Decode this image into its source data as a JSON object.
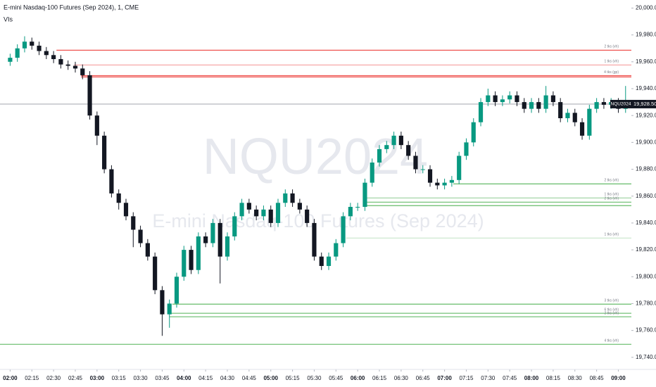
{
  "chart_data": {
    "type": "candlestick",
    "title": "E-mini Nasdaq-100 Futures (Sep 2024), 1, CME",
    "subtitle": "VIs",
    "watermark": "NQU2024",
    "watermark_subtitle": "E-mini Nasdaq-100 Futures (Sep 2024)",
    "up_color": "#089981",
    "down_color": "#131722",
    "xlim": [
      "01:53",
      "09:09"
    ],
    "xticks": [
      "02:00",
      "02:15",
      "02:30",
      "02:45",
      "03:00",
      "03:15",
      "03:30",
      "03:45",
      "04:00",
      "04:15",
      "04:30",
      "04:45",
      "05:00",
      "05:15",
      "05:30",
      "05:45",
      "06:00",
      "06:15",
      "06:30",
      "06:45",
      "07:00",
      "07:15",
      "07:30",
      "07:45",
      "08:00",
      "08:15",
      "08:30",
      "08:45",
      "09:00"
    ],
    "ylim": [
      19731,
      20006
    ],
    "yticks": [
      {
        "value": 20000,
        "label": "20,000.00"
      },
      {
        "value": 19980,
        "label": "19,980.00"
      },
      {
        "value": 19960,
        "label": "19,960.00"
      },
      {
        "value": 19940,
        "label": "19,940.00"
      },
      {
        "value": 19920,
        "label": "19,920.00"
      },
      {
        "value": 19900,
        "label": "19,900.00"
      },
      {
        "value": 19880,
        "label": "19,880.00"
      },
      {
        "value": 19860,
        "label": "19,860.00"
      },
      {
        "value": 19840,
        "label": "19,840.00"
      },
      {
        "value": 19820,
        "label": "19,820.00"
      },
      {
        "value": 19800,
        "label": "19,800.00"
      },
      {
        "value": 19780,
        "label": "19,780.00"
      },
      {
        "value": 19760,
        "label": "19,760.00"
      },
      {
        "value": 19740,
        "label": "19,740.00"
      }
    ],
    "x": [
      "02:00",
      "02:05",
      "02:10",
      "02:15",
      "02:20",
      "02:25",
      "02:30",
      "02:35",
      "02:40",
      "02:45",
      "02:50",
      "02:55",
      "03:00",
      "03:05",
      "03:10",
      "03:15",
      "03:20",
      "03:25",
      "03:30",
      "03:35",
      "03:40",
      "03:45",
      "03:50",
      "03:55",
      "04:00",
      "04:05",
      "04:10",
      "04:15",
      "04:20",
      "04:25",
      "04:30",
      "04:35",
      "04:40",
      "04:45",
      "04:50",
      "04:55",
      "05:00",
      "05:05",
      "05:10",
      "05:15",
      "05:20",
      "05:25",
      "05:30",
      "05:35",
      "05:40",
      "05:45",
      "05:50",
      "05:55",
      "06:00",
      "06:05",
      "06:10",
      "06:15",
      "06:20",
      "06:25",
      "06:30",
      "06:35",
      "06:40",
      "06:45",
      "06:50",
      "06:55",
      "07:00",
      "07:05",
      "07:10",
      "07:15",
      "07:20",
      "07:25",
      "07:30",
      "07:35",
      "07:40",
      "07:45",
      "07:50",
      "07:55",
      "08:00",
      "08:05",
      "08:10",
      "08:15",
      "08:20",
      "08:25",
      "08:30",
      "08:35",
      "08:40",
      "08:45",
      "08:50",
      "08:55",
      "09:00",
      "09:05"
    ],
    "open": [
      19960,
      19963,
      19970,
      19975,
      19972,
      19968,
      19965,
      19962,
      19958,
      19957,
      19955,
      19950,
      19920,
      19905,
      19880,
      19862,
      19855,
      19845,
      19835,
      19825,
      19815,
      19790,
      19772,
      19780,
      19800,
      19820,
      19805,
      19830,
      19825,
      19840,
      19815,
      19830,
      19845,
      19855,
      19850,
      19845,
      19850,
      19840,
      19855,
      19862,
      19855,
      19850,
      19840,
      19815,
      19808,
      19815,
      19825,
      19845,
      19852,
      19852,
      19870,
      19885,
      19895,
      19898,
      19905,
      19898,
      19890,
      19880,
      19880,
      19870,
      19868,
      19870,
      19872,
      19890,
      19900,
      19915,
      19930,
      19935,
      19930,
      19932,
      19935,
      19930,
      19925,
      19930,
      19925,
      19935,
      19930,
      19918,
      19922,
      19915,
      19905,
      19925,
      19930,
      19928,
      19930,
      19925
    ],
    "high": [
      19966,
      19973,
      19979,
      19978,
      19975,
      19971,
      19968,
      19965,
      19961,
      19960,
      19958,
      19953,
      19923,
      19908,
      19883,
      19865,
      19858,
      19848,
      19838,
      19828,
      19818,
      19793,
      19783,
      19803,
      19823,
      19823,
      19833,
      19833,
      19843,
      19843,
      19833,
      19848,
      19858,
      19858,
      19853,
      19853,
      19853,
      19858,
      19865,
      19865,
      19858,
      19853,
      19843,
      19818,
      19818,
      19828,
      19848,
      19855,
      19855,
      19873,
      19888,
      19898,
      19901,
      19908,
      19908,
      19901,
      19893,
      19883,
      19883,
      19873,
      19873,
      19875,
      19893,
      19903,
      19918,
      19933,
      19940,
      19938,
      19935,
      19938,
      19938,
      19933,
      19933,
      19933,
      19942,
      19938,
      19933,
      19925,
      19925,
      19918,
      19928,
      19933,
      19933,
      19933,
      19933,
      19942
    ],
    "low": [
      19957,
      19960,
      19967,
      19969,
      19965,
      19962,
      19959,
      19955,
      19954,
      19952,
      19947,
      19917,
      19898,
      19877,
      19859,
      19850,
      19842,
      19822,
      19822,
      19812,
      19787,
      19756,
      19762,
      19777,
      19797,
      19802,
      19802,
      19822,
      19822,
      19795,
      19812,
      19827,
      19842,
      19847,
      19842,
      19842,
      19837,
      19837,
      19852,
      19852,
      19847,
      19837,
      19812,
      19805,
      19805,
      19812,
      19822,
      19842,
      19849,
      19849,
      19867,
      19882,
      19892,
      19895,
      19895,
      19887,
      19877,
      19877,
      19867,
      19865,
      19865,
      19867,
      19869,
      19887,
      19897,
      19912,
      19927,
      19927,
      19927,
      19929,
      19927,
      19922,
      19922,
      19922,
      19922,
      19927,
      19915,
      19915,
      19912,
      19902,
      19902,
      19922,
      19925,
      19925,
      19922,
      19922
    ],
    "close": [
      19963,
      19970,
      19975,
      19972,
      19968,
      19965,
      19962,
      19958,
      19957,
      19955,
      19950,
      19920,
      19905,
      19880,
      19862,
      19855,
      19845,
      19835,
      19825,
      19815,
      19790,
      19772,
      19780,
      19800,
      19820,
      19805,
      19830,
      19825,
      19840,
      19815,
      19830,
      19845,
      19855,
      19850,
      19845,
      19850,
      19840,
      19855,
      19862,
      19855,
      19850,
      19840,
      19815,
      19808,
      19815,
      19825,
      19845,
      19852,
      19852,
      19870,
      19885,
      19895,
      19898,
      19905,
      19898,
      19890,
      19880,
      19880,
      19870,
      19868,
      19870,
      19872,
      19890,
      19900,
      19915,
      19930,
      19935,
      19930,
      19932,
      19935,
      19930,
      19925,
      19930,
      19925,
      19935,
      19930,
      19918,
      19922,
      19915,
      19905,
      19925,
      19930,
      19928,
      19930,
      19925,
      19928.5
    ],
    "levels": [
      {
        "price": 19968.6,
        "start": "02:32",
        "color": "#ef5350",
        "label": "2 tks (vh)"
      },
      {
        "price": 19957.6,
        "start": "02:44",
        "color": "#f7a8a7",
        "label": "1 tks (vh)"
      },
      {
        "price": 19949.7,
        "start": "02:49",
        "color": "#ef5350",
        "label": "4 tks (gp)"
      },
      {
        "price": 19948.7,
        "start": "02:49",
        "color": "#ef5350"
      },
      {
        "price": 19869.1,
        "start": "07:06",
        "color": "#66bb6a",
        "label": "2 tks (vh)"
      },
      {
        "price": 19858.6,
        "start": "06:04",
        "color": "#a5d6a7",
        "label": "1 tks (vh)"
      },
      {
        "price": 19855.5,
        "start": "06:04",
        "color": "#66bb6a",
        "label": "2 tks (vh)"
      },
      {
        "price": 19852.9,
        "start": "06:04",
        "color": "#66bb6a"
      },
      {
        "price": 19828.8,
        "start": "05:52",
        "color": "#c8e6c9",
        "label": "1 tks (vh)"
      },
      {
        "price": 19779.6,
        "start": "03:52",
        "color": "#66bb6a",
        "label": "3 tks (vh)"
      },
      {
        "price": 19772.8,
        "start": "03:50",
        "color": "#66bb6a",
        "label": "6 tks (vh)"
      },
      {
        "price": 19770.2,
        "start": "03:50",
        "color": "#66bb6a",
        "label": "2 tks (vh)"
      },
      {
        "price": 19749.7,
        "start": "01:53",
        "color": "#66bb6a",
        "label": "4 tks (vh)"
      }
    ],
    "last_price": {
      "value": 19928.5,
      "symbol": "NQU2024",
      "label": "19,928.50"
    }
  }
}
